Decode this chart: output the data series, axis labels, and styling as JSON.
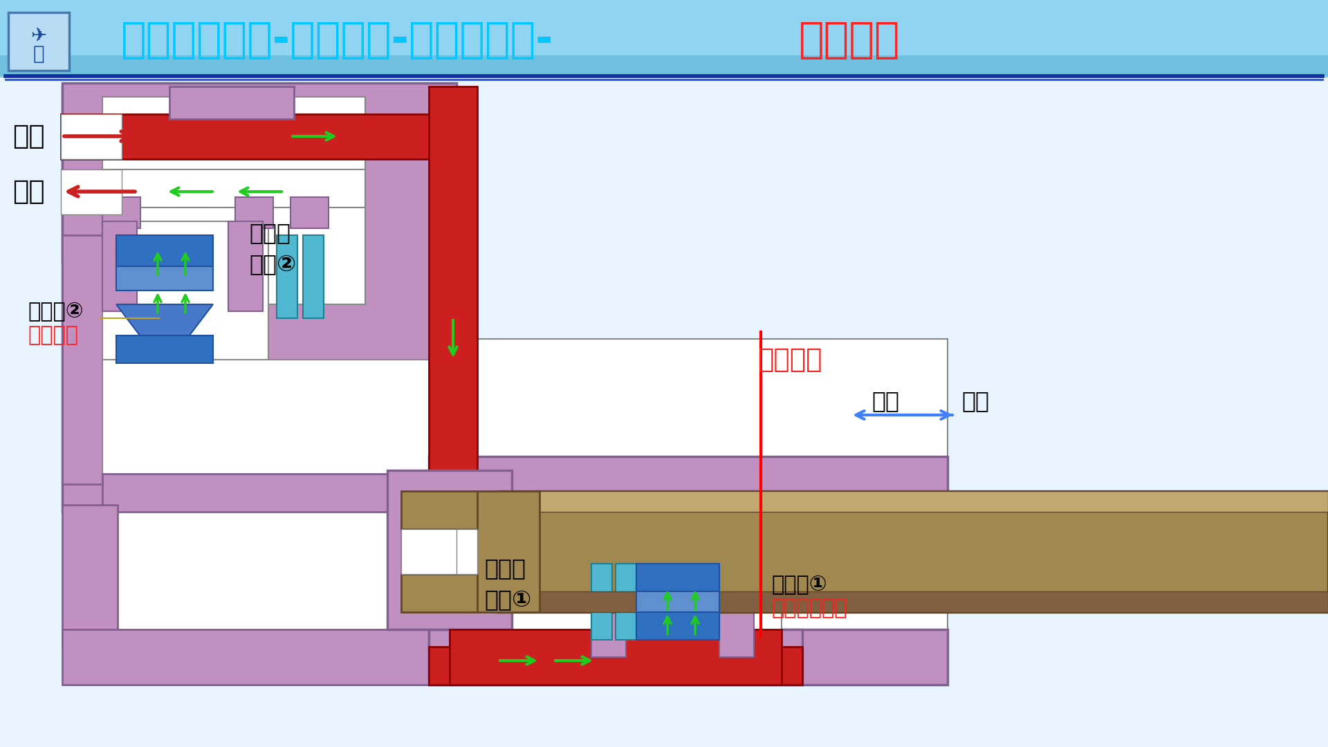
{
  "title": "飞机构造基础-液压系统-缓冲作动筒-缩入行程",
  "title_color_main": "#00BFFF",
  "title_color_highlight": "#FF0000",
  "bg_gradient_top": "#87CEEB",
  "bg_gradient_bottom": "#E0F8FF",
  "bg_color": "#FFFFFF",
  "purple_color": "#C8A0C8",
  "red_color": "#CC0000",
  "dark_red": "#CC0000",
  "green_arrow": "#00CC00",
  "blue_valve": "#4080C0",
  "cyan_valve": "#40C0D0",
  "bronze_color": "#8B7355",
  "bronze_dark": "#6B5535",
  "white_color": "#FFFFFF",
  "label_压力": "压力",
  "label_回油": "回油",
  "label_限流阀2": "限流阀②",
  "label_限流模式": "限流模式",
  "label_可控限流孔2": "可控限\n流孔②",
  "label_单路供压": "单路供压",
  "label_放出收上": "放出      收上",
  "label_可控限流孔1": "可控限\n流孔①",
  "label_限流阀1": "限流阀①",
  "label_自由流动模式": "自由流动模式"
}
